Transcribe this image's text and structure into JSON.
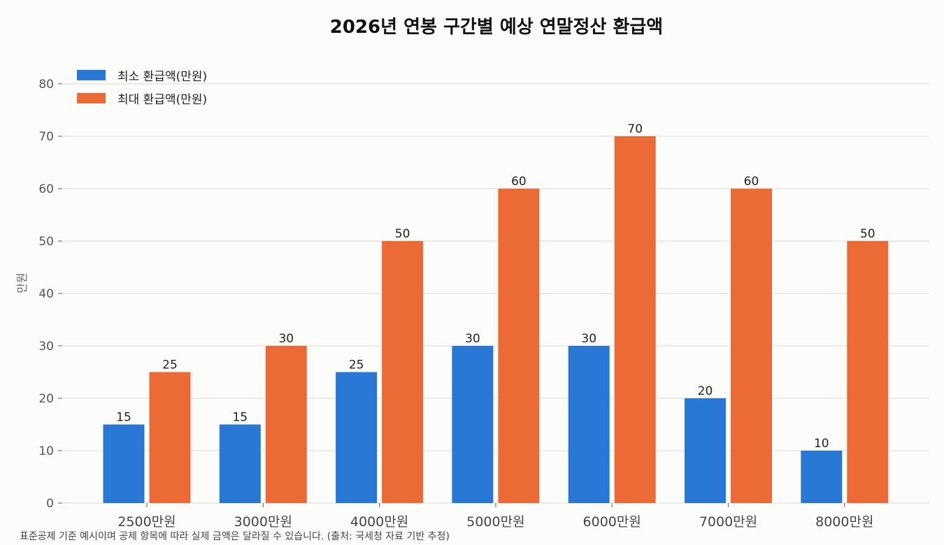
{
  "chart_data": {
    "type": "bar",
    "title": "2026년 연봉 구간별 예상 연말정산 환급액",
    "xlabel": "",
    "ylabel": "만원",
    "ylim": [
      0,
      80
    ],
    "yticks": [
      "0",
      "10",
      "20",
      "30",
      "40",
      "50",
      "60",
      "70",
      "80"
    ],
    "grid": true,
    "legend_position": "top-left",
    "categories": [
      "2500만원",
      "3000만원",
      "4000만원",
      "5000만원",
      "6000만원",
      "7000만원",
      "8000만원"
    ],
    "series": [
      {
        "name": "최소 환급액(만원)",
        "color": "#2a78d6",
        "values": [
          15,
          15,
          25,
          30,
          30,
          20,
          10
        ],
        "labels": [
          "15",
          "15",
          "25",
          "30",
          "30",
          "20",
          "10"
        ]
      },
      {
        "name": "최대 환급액(만원)",
        "color": "#ec6a36",
        "values": [
          25,
          30,
          50,
          60,
          70,
          60,
          50
        ],
        "labels": [
          "25",
          "30",
          "50",
          "60",
          "70",
          "60",
          "50"
        ]
      }
    ],
    "footnote": "표준공제 기준 예시이며 공제 항목에 따라 실제 금액은 달라질 수 있습니다. (출처: 국세청 자료 기반 추정)"
  }
}
